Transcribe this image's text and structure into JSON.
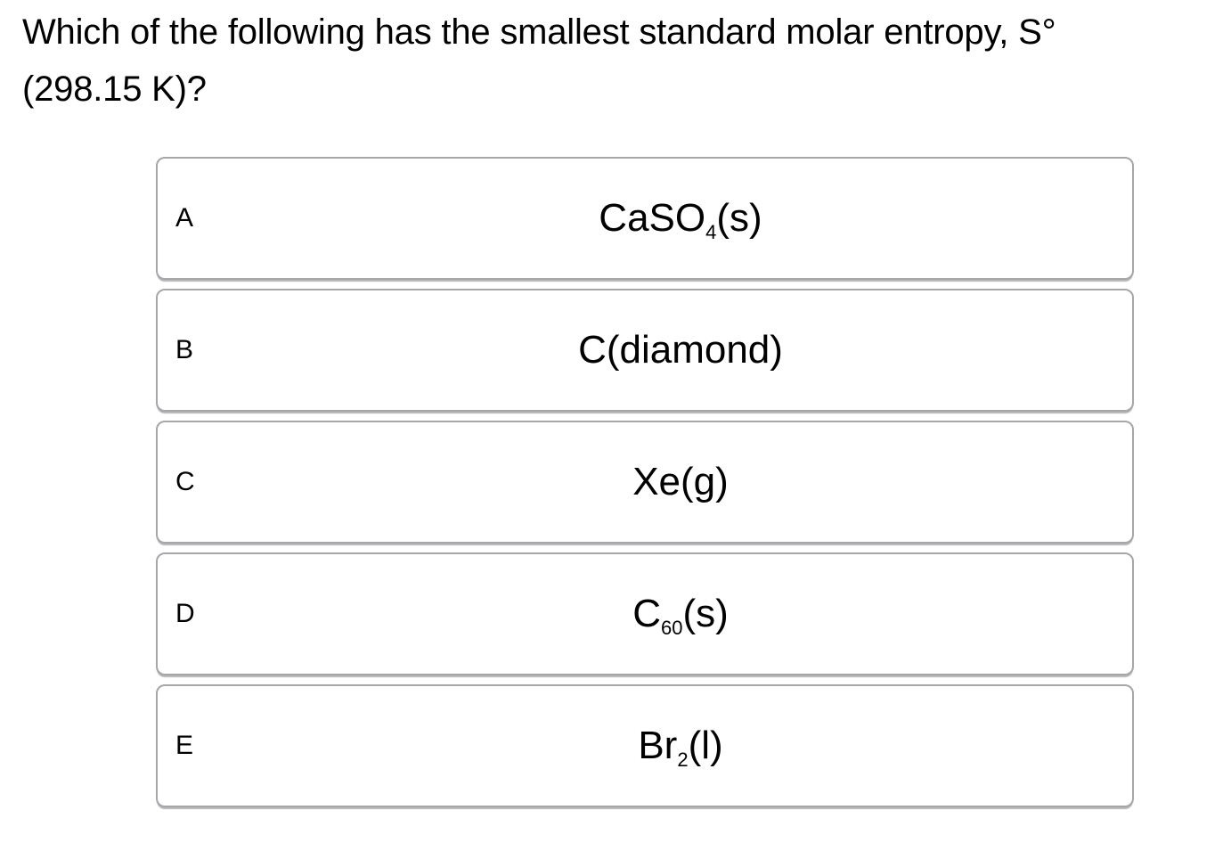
{
  "question": {
    "lines": [
      "Which of the following has the smallest standard molar entropy, S°",
      "(298.15 K)?"
    ]
  },
  "options": [
    {
      "letter": "A",
      "formula_pre": "CaSO",
      "formula_sub": "4",
      "formula_post": "(s)"
    },
    {
      "letter": "B",
      "formula_pre": "C(diamond)",
      "formula_sub": "",
      "formula_post": ""
    },
    {
      "letter": "C",
      "formula_pre": "Xe(g)",
      "formula_sub": "",
      "formula_post": ""
    },
    {
      "letter": "D",
      "formula_pre": "C",
      "formula_sub": "60",
      "formula_post": "(s)"
    },
    {
      "letter": "E",
      "formula_pre": "Br",
      "formula_sub": "2",
      "formula_post": "(l)"
    }
  ],
  "colors": {
    "background": "#ffffff",
    "text": "#000000",
    "card_border": "#a6a7ab"
  }
}
